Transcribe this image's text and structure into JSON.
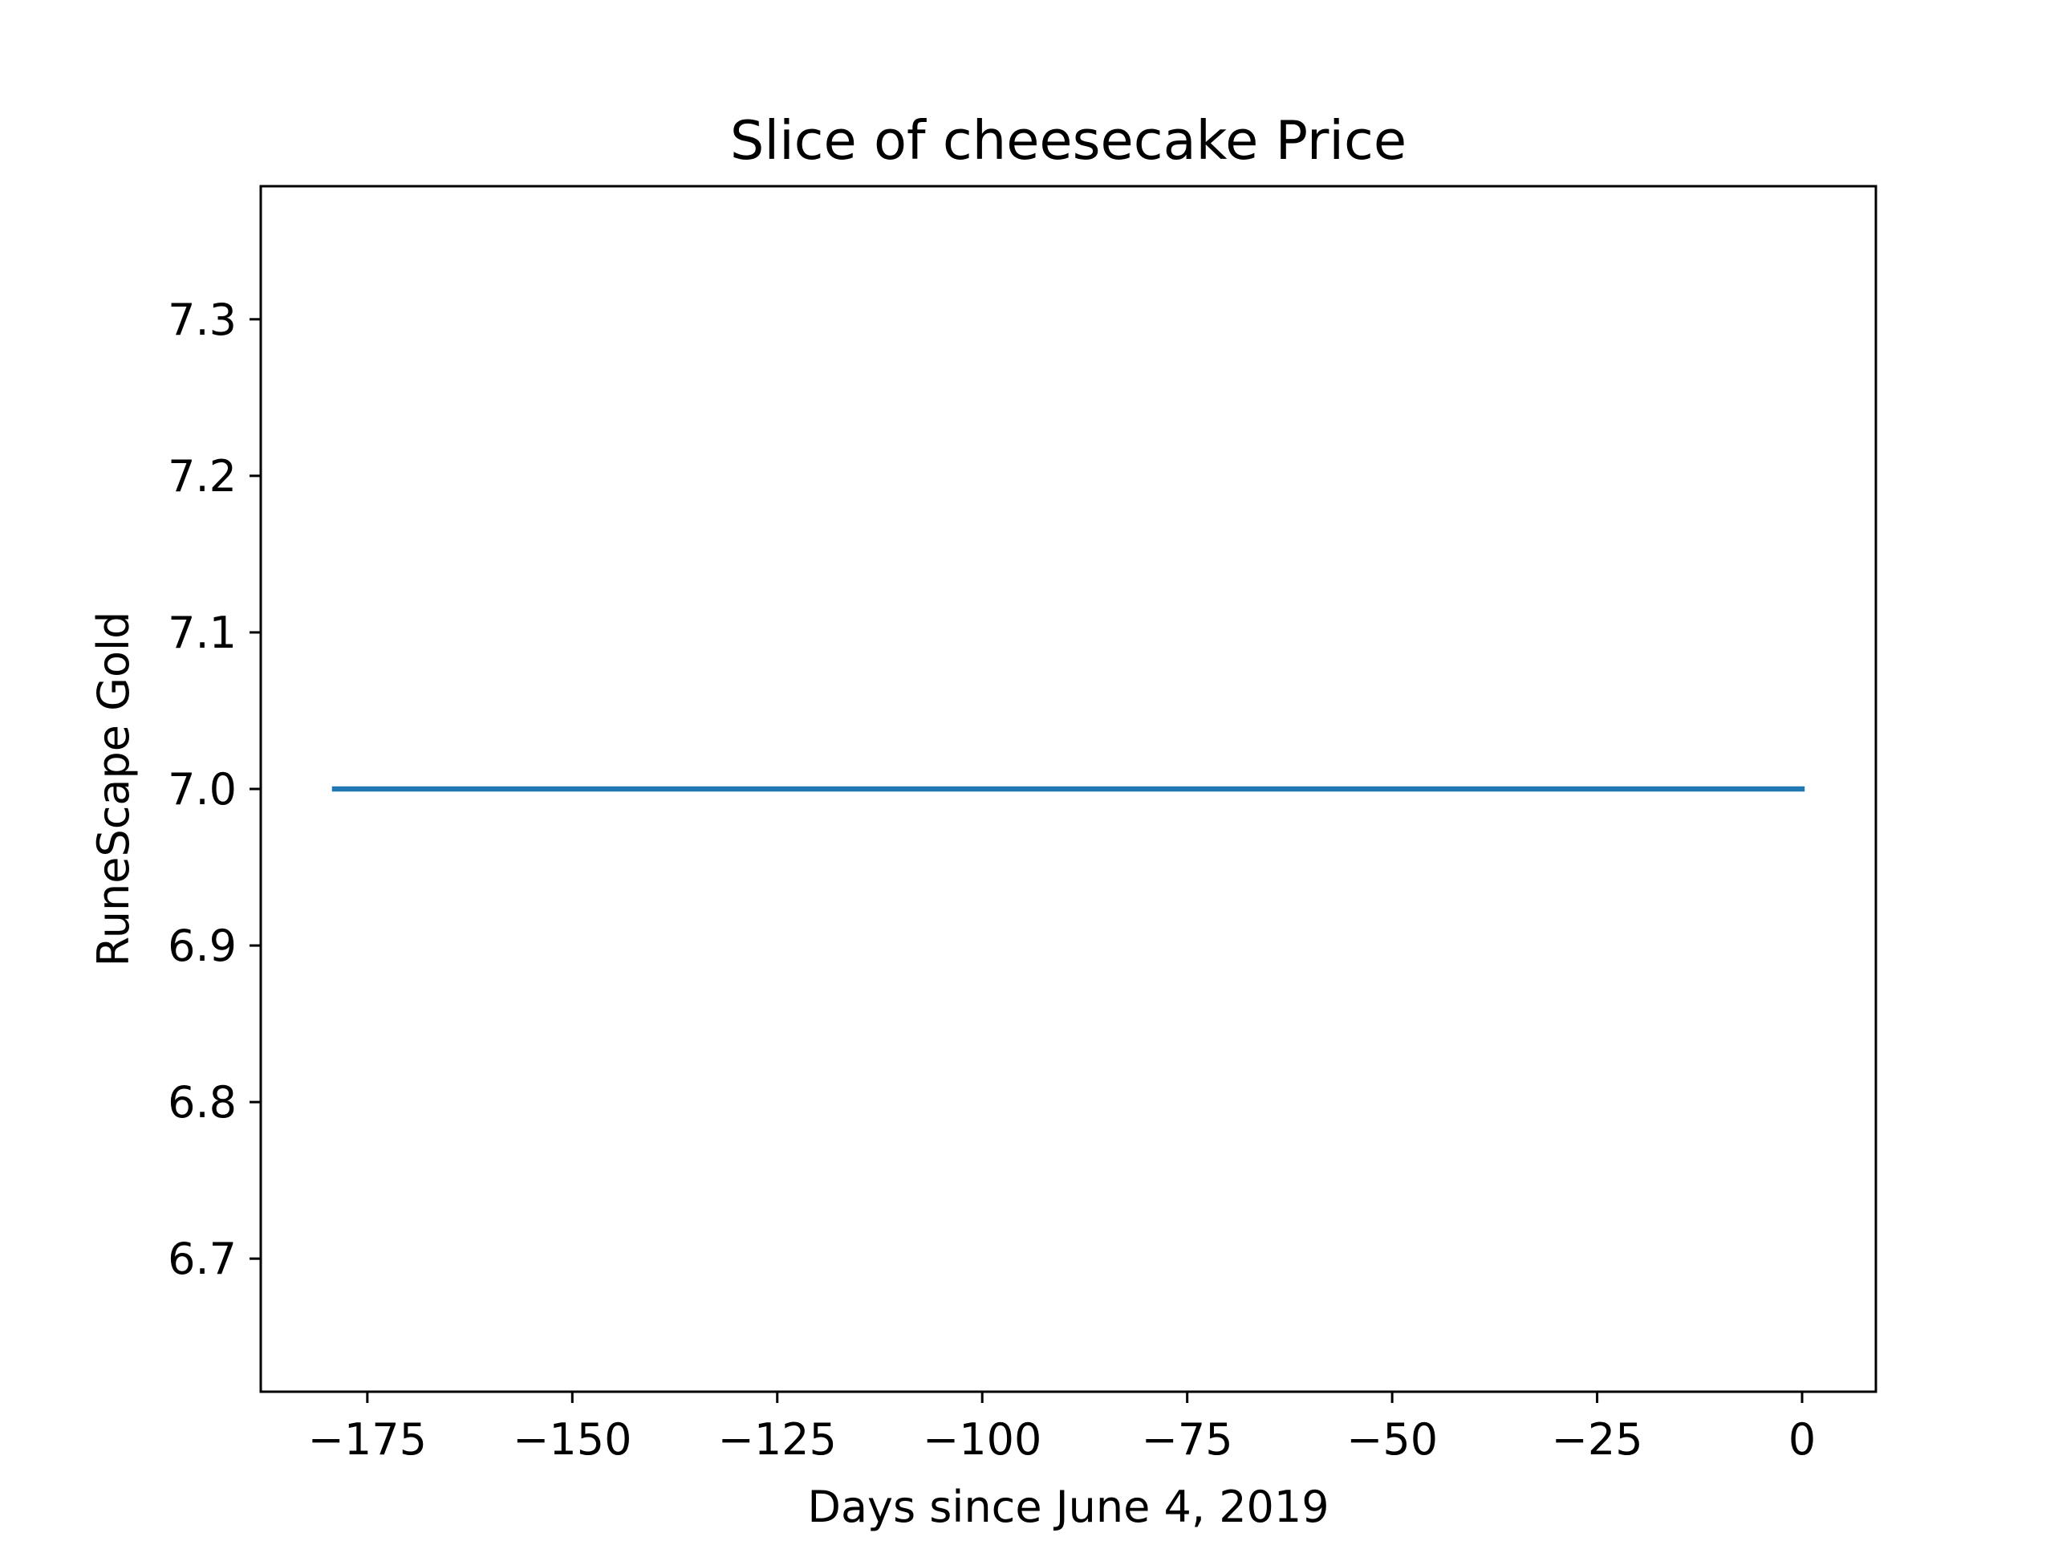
{
  "chart_data": {
    "type": "line",
    "title": "Slice of cheesecake Price",
    "xlabel": "Days since June 4, 2019",
    "ylabel": "RuneScape Gold",
    "xlim": [
      -188,
      9
    ],
    "ylim": [
      6.615,
      7.385
    ],
    "xticks": [
      -175,
      -150,
      -125,
      -100,
      -75,
      -50,
      -25,
      0
    ],
    "xtick_labels": [
      "−175",
      "−150",
      "−125",
      "−100",
      "−75",
      "−50",
      "−25",
      "0"
    ],
    "yticks": [
      6.7,
      6.8,
      6.9,
      7.0,
      7.1,
      7.2,
      7.3
    ],
    "ytick_labels": [
      "6.7",
      "6.8",
      "6.9",
      "7.0",
      "7.1",
      "7.2",
      "7.3"
    ],
    "grid": false,
    "series": [
      {
        "color": "#1f77b4",
        "x": [
          -179,
          0
        ],
        "y": [
          7.0,
          7.0
        ]
      }
    ]
  }
}
